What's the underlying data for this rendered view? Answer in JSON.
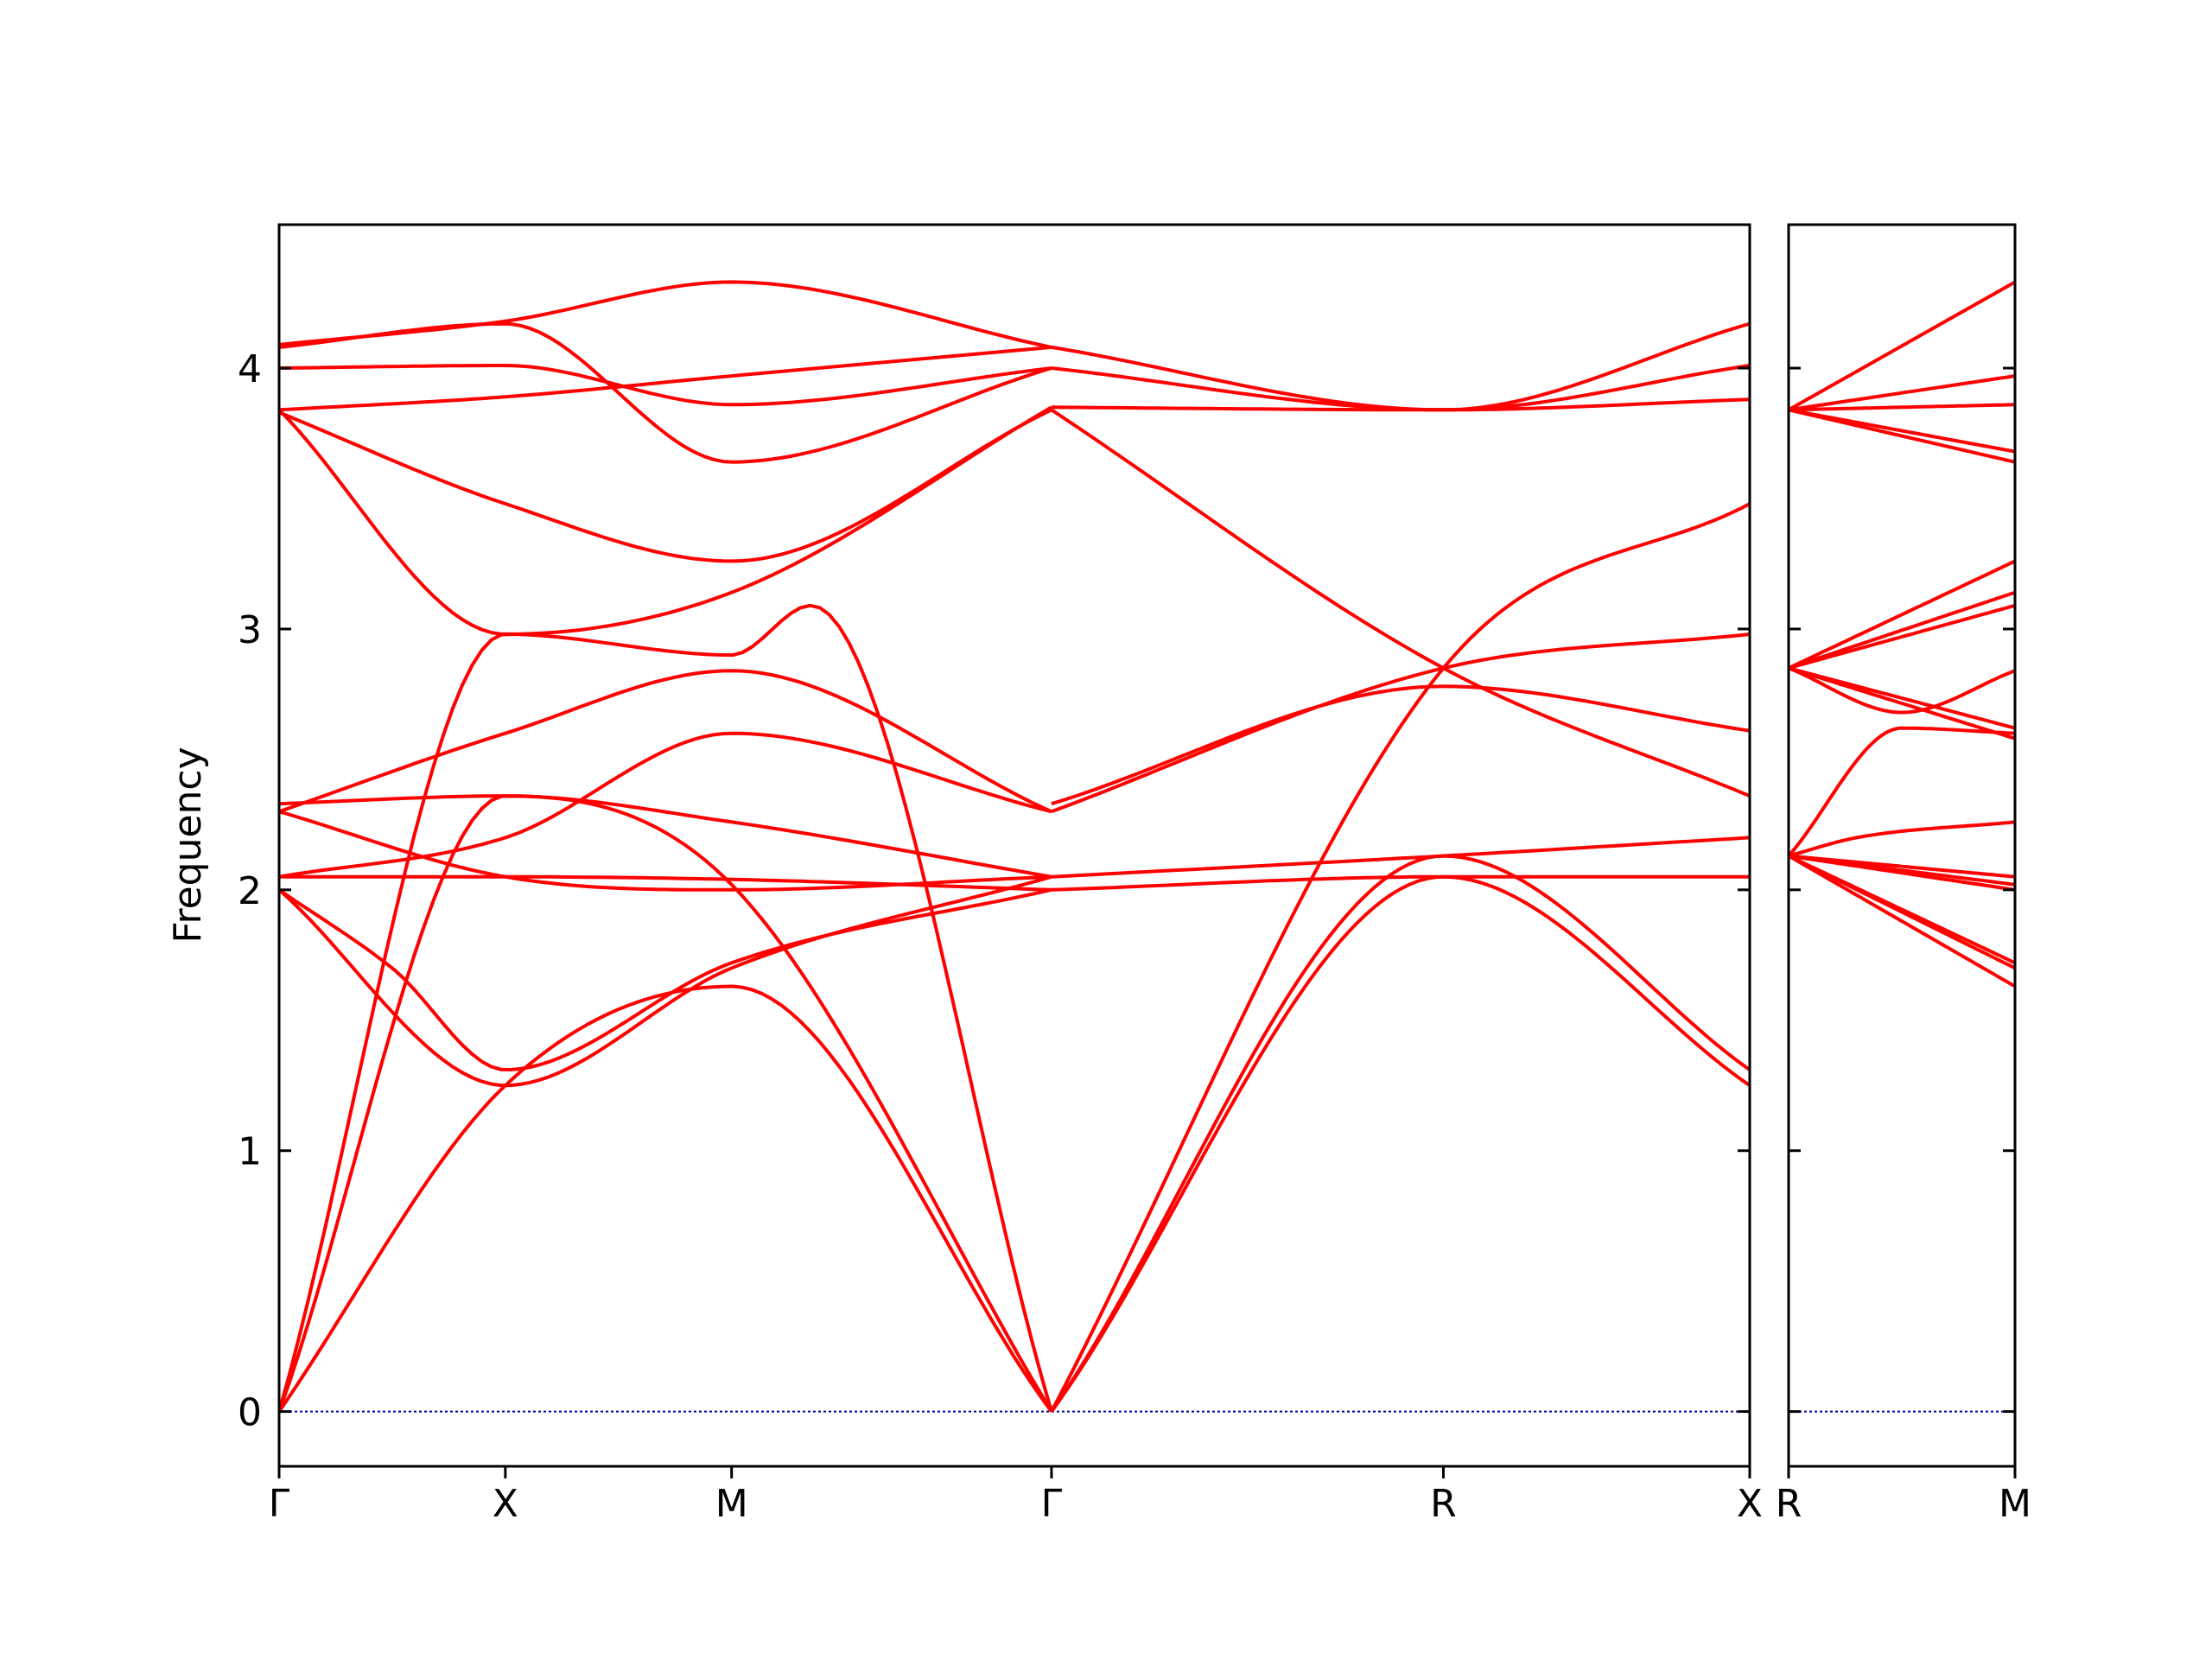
{
  "chart_data": [
    {
      "type": "line",
      "panel": "main",
      "ylabel": "Frequency",
      "ylim": [
        -0.21,
        4.55
      ],
      "xlim": [
        0,
        6.5
      ],
      "yticks": [
        0,
        1,
        2,
        3,
        4
      ],
      "ytick_labels": [
        "0",
        "1",
        "2",
        "3",
        "4"
      ],
      "xticks": [
        0,
        1,
        2,
        3.414,
        5.146,
        6.5
      ],
      "xtick_labels": [
        "Γ",
        "X",
        "M",
        "Γ",
        "R",
        "X"
      ],
      "line_color": "#ff0000",
      "zero_line_color": "#0000aa",
      "series": [
        {
          "x": [
            0,
            1,
            2,
            3.414
          ],
          "y": [
            0,
            1.25,
            1.63,
            0
          ]
        },
        {
          "x": [
            0,
            1,
            2,
            3.414
          ],
          "y": [
            0,
            2.36,
            2.02,
            0
          ]
        },
        {
          "x": [
            0,
            1,
            2,
            2.35,
            3.414
          ],
          "y": [
            0,
            2.98,
            2.9,
            3.09,
            0
          ]
        },
        {
          "x": [
            0,
            0.5,
            1,
            2,
            3.414
          ],
          "y": [
            2.0,
            1.7,
            1.31,
            1.72,
            2.0
          ]
        },
        {
          "x": [
            0,
            1,
            2,
            3.414
          ],
          "y": [
            2.0,
            1.25,
            1.7,
            2.05
          ]
        },
        {
          "x": [
            0,
            1,
            2,
            3.414
          ],
          "y": [
            2.05,
            2.05,
            2.04,
            2.0
          ]
        },
        {
          "x": [
            0,
            1,
            2,
            3.414
          ],
          "y": [
            2.05,
            2.2,
            2.6,
            2.3
          ]
        },
        {
          "x": [
            0,
            1,
            2,
            3.414
          ],
          "y": [
            2.3,
            2.05,
            2.0,
            2.05
          ]
        },
        {
          "x": [
            0,
            1,
            2,
            3.414
          ],
          "y": [
            2.3,
            2.6,
            2.84,
            2.3
          ]
        },
        {
          "x": [
            0,
            1,
            2,
            3.414
          ],
          "y": [
            2.33,
            2.36,
            2.26,
            2.05
          ]
        },
        {
          "x": [
            0,
            1,
            2,
            3.414
          ],
          "y": [
            3.83,
            3.48,
            3.26,
            3.84
          ]
        },
        {
          "x": [
            0,
            1,
            2,
            3.414
          ],
          "y": [
            3.84,
            2.98,
            3.14,
            3.85
          ]
        },
        {
          "x": [
            0,
            1,
            2,
            3.414
          ],
          "y": [
            3.84,
            3.89,
            3.97,
            4.08
          ]
        },
        {
          "x": [
            0,
            1,
            2,
            3.414
          ],
          "y": [
            4.0,
            4.01,
            3.86,
            4.0
          ]
        },
        {
          "x": [
            0,
            1,
            2,
            3.414
          ],
          "y": [
            4.08,
            4.17,
            3.64,
            4.0
          ]
        },
        {
          "x": [
            0,
            1,
            2,
            3.414
          ],
          "y": [
            4.09,
            4.18,
            4.33,
            4.08
          ]
        },
        {
          "x": [
            3.414,
            5.146,
            6.5
          ],
          "y": [
            0,
            2.05,
            1.25
          ]
        },
        {
          "x": [
            3.414,
            5.146,
            6.5
          ],
          "y": [
            0,
            2.13,
            1.31
          ]
        },
        {
          "x": [
            3.414,
            5.146,
            6.5
          ],
          "y": [
            0,
            2.85,
            3.48
          ]
        },
        {
          "x": [
            3.414,
            5.146,
            6.5
          ],
          "y": [
            2.0,
            2.05,
            2.05
          ]
        },
        {
          "x": [
            3.414,
            5.146,
            6.5
          ],
          "y": [
            2.05,
            2.13,
            2.2
          ]
        },
        {
          "x": [
            3.414,
            5.146,
            6.5
          ],
          "y": [
            2.3,
            2.85,
            2.98
          ]
        },
        {
          "x": [
            3.414,
            5.146,
            6.5
          ],
          "y": [
            2.33,
            2.78,
            2.61
          ]
        },
        {
          "x": [
            3.414,
            5.146,
            6.5
          ],
          "y": [
            3.84,
            2.85,
            2.36
          ]
        },
        {
          "x": [
            3.414,
            5.146,
            6.5
          ],
          "y": [
            3.85,
            3.84,
            3.88
          ]
        },
        {
          "x": [
            3.414,
            5.146,
            6.5
          ],
          "y": [
            4.0,
            3.84,
            4.01
          ]
        },
        {
          "x": [
            3.414,
            5.146,
            6.5
          ],
          "y": [
            4.08,
            3.84,
            4.17
          ]
        }
      ]
    },
    {
      "type": "line",
      "panel": "side",
      "ylim": [
        -0.21,
        4.55
      ],
      "xlim": [
        0,
        1
      ],
      "yticks": [
        0,
        1,
        2,
        3,
        4
      ],
      "xticks": [
        0,
        1
      ],
      "xtick_labels": [
        "R",
        "M"
      ],
      "line_color": "#ff0000",
      "zero_line_color": "#0000aa",
      "series": [
        {
          "x": [
            0,
            1
          ],
          "y": [
            2.13,
            1.63
          ]
        },
        {
          "x": [
            0,
            1
          ],
          "y": [
            2.13,
            1.7
          ]
        },
        {
          "x": [
            0,
            1
          ],
          "y": [
            2.13,
            1.72
          ]
        },
        {
          "x": [
            0,
            1
          ],
          "y": [
            2.13,
            2.0
          ]
        },
        {
          "x": [
            0,
            1
          ],
          "y": [
            2.13,
            2.02
          ]
        },
        {
          "x": [
            0,
            1
          ],
          "y": [
            2.13,
            2.05
          ]
        },
        {
          "x": [
            0,
            0.3,
            1
          ],
          "y": [
            2.13,
            2.2,
            2.26
          ]
        },
        {
          "x": [
            0,
            0.5,
            1
          ],
          "y": [
            2.13,
            2.62,
            2.6
          ]
        },
        {
          "x": [
            0,
            1
          ],
          "y": [
            2.85,
            2.62
          ]
        },
        {
          "x": [
            0,
            0.5,
            1
          ],
          "y": [
            2.85,
            2.68,
            2.84
          ]
        },
        {
          "x": [
            0,
            1
          ],
          "y": [
            2.85,
            2.58
          ]
        },
        {
          "x": [
            0,
            1
          ],
          "y": [
            2.85,
            3.09
          ]
        },
        {
          "x": [
            0,
            1
          ],
          "y": [
            2.85,
            3.14
          ]
        },
        {
          "x": [
            0,
            1
          ],
          "y": [
            2.85,
            3.26
          ]
        },
        {
          "x": [
            0,
            1
          ],
          "y": [
            3.84,
            3.64
          ]
        },
        {
          "x": [
            0,
            1
          ],
          "y": [
            3.84,
            3.68
          ]
        },
        {
          "x": [
            0,
            1
          ],
          "y": [
            3.84,
            3.86
          ]
        },
        {
          "x": [
            0,
            1
          ],
          "y": [
            3.84,
            3.97
          ]
        },
        {
          "x": [
            0,
            1
          ],
          "y": [
            3.84,
            4.33
          ]
        }
      ]
    }
  ]
}
